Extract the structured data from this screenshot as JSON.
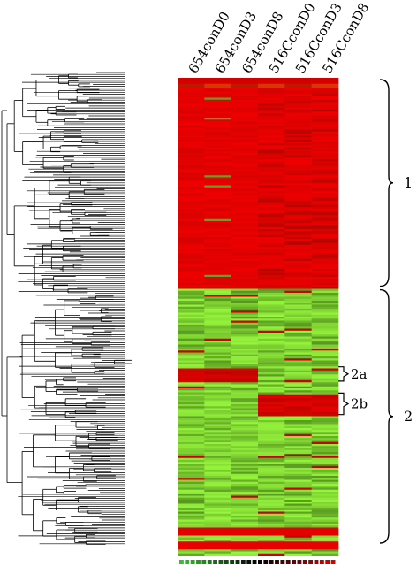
{
  "chart_data": {
    "type": "heatmap",
    "title": "",
    "columns": [
      "654conD0",
      "654conD3",
      "654conD8",
      "516CconD0",
      "516CconD3",
      "516CconD8"
    ],
    "clusters": [
      {
        "label": "1",
        "row_start": 0.09,
        "row_end": 0.44,
        "dominant_color": "red"
      },
      {
        "label": "2",
        "row_start": 0.44,
        "row_end": 1.0,
        "dominant_color": "green"
      },
      {
        "label": "2a",
        "row_start": 0.605,
        "row_end": 0.635,
        "parent": "2"
      },
      {
        "label": "2b",
        "row_start": 0.66,
        "row_end": 0.705,
        "parent": "2"
      }
    ],
    "colors": {
      "high": "#e00000",
      "low": "#8ef03a",
      "mid": "#000000"
    },
    "dendrogram": "left, hierarchical clustering of rows",
    "color_scale": "bottom, green to black to red"
  }
}
